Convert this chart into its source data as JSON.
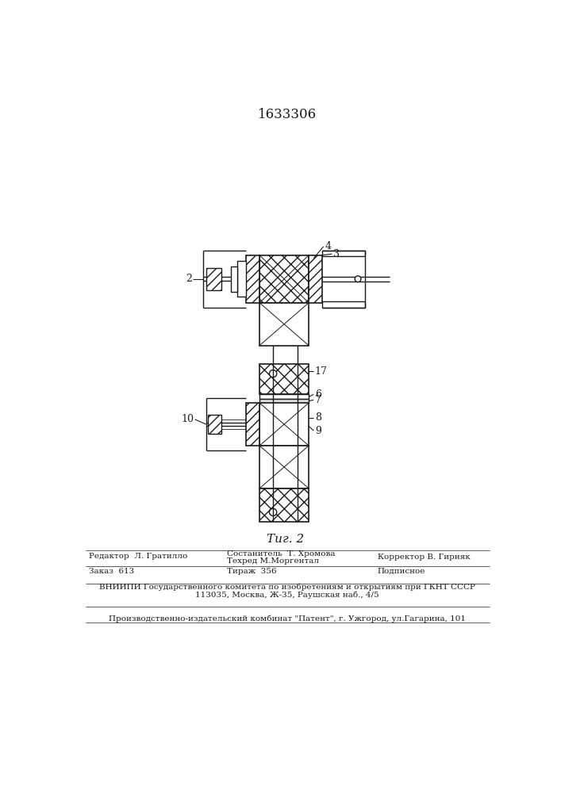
{
  "title": "1633306",
  "fig_label": "Τиг. 2",
  "background_color": "#ffffff",
  "line_color": "#1a1a1a",
  "footer_redaktor": "Редактор  Л. Гратилло",
  "footer_sostavitel": "Состанитель  Т. Хромова",
  "footer_tehred": "Техред М.Моргентал",
  "footer_korrektor": "Корректор В. Гирняк",
  "footer_zakaz": "Заказ  613",
  "footer_tirazh": "Тираж  356",
  "footer_podpisnoe": "Подписное",
  "footer_vniipи": "ВНИИПИ Государственного комитета по изобретениям и открытиям при ГКНТ СССР",
  "footer_address": "113035, Москва, Ж-35, Раушская наб., 4/5",
  "footer_patent": "Производственно-издательский комбинат \"Патент\", г. Ужгород, ул.Гагарина, 101"
}
